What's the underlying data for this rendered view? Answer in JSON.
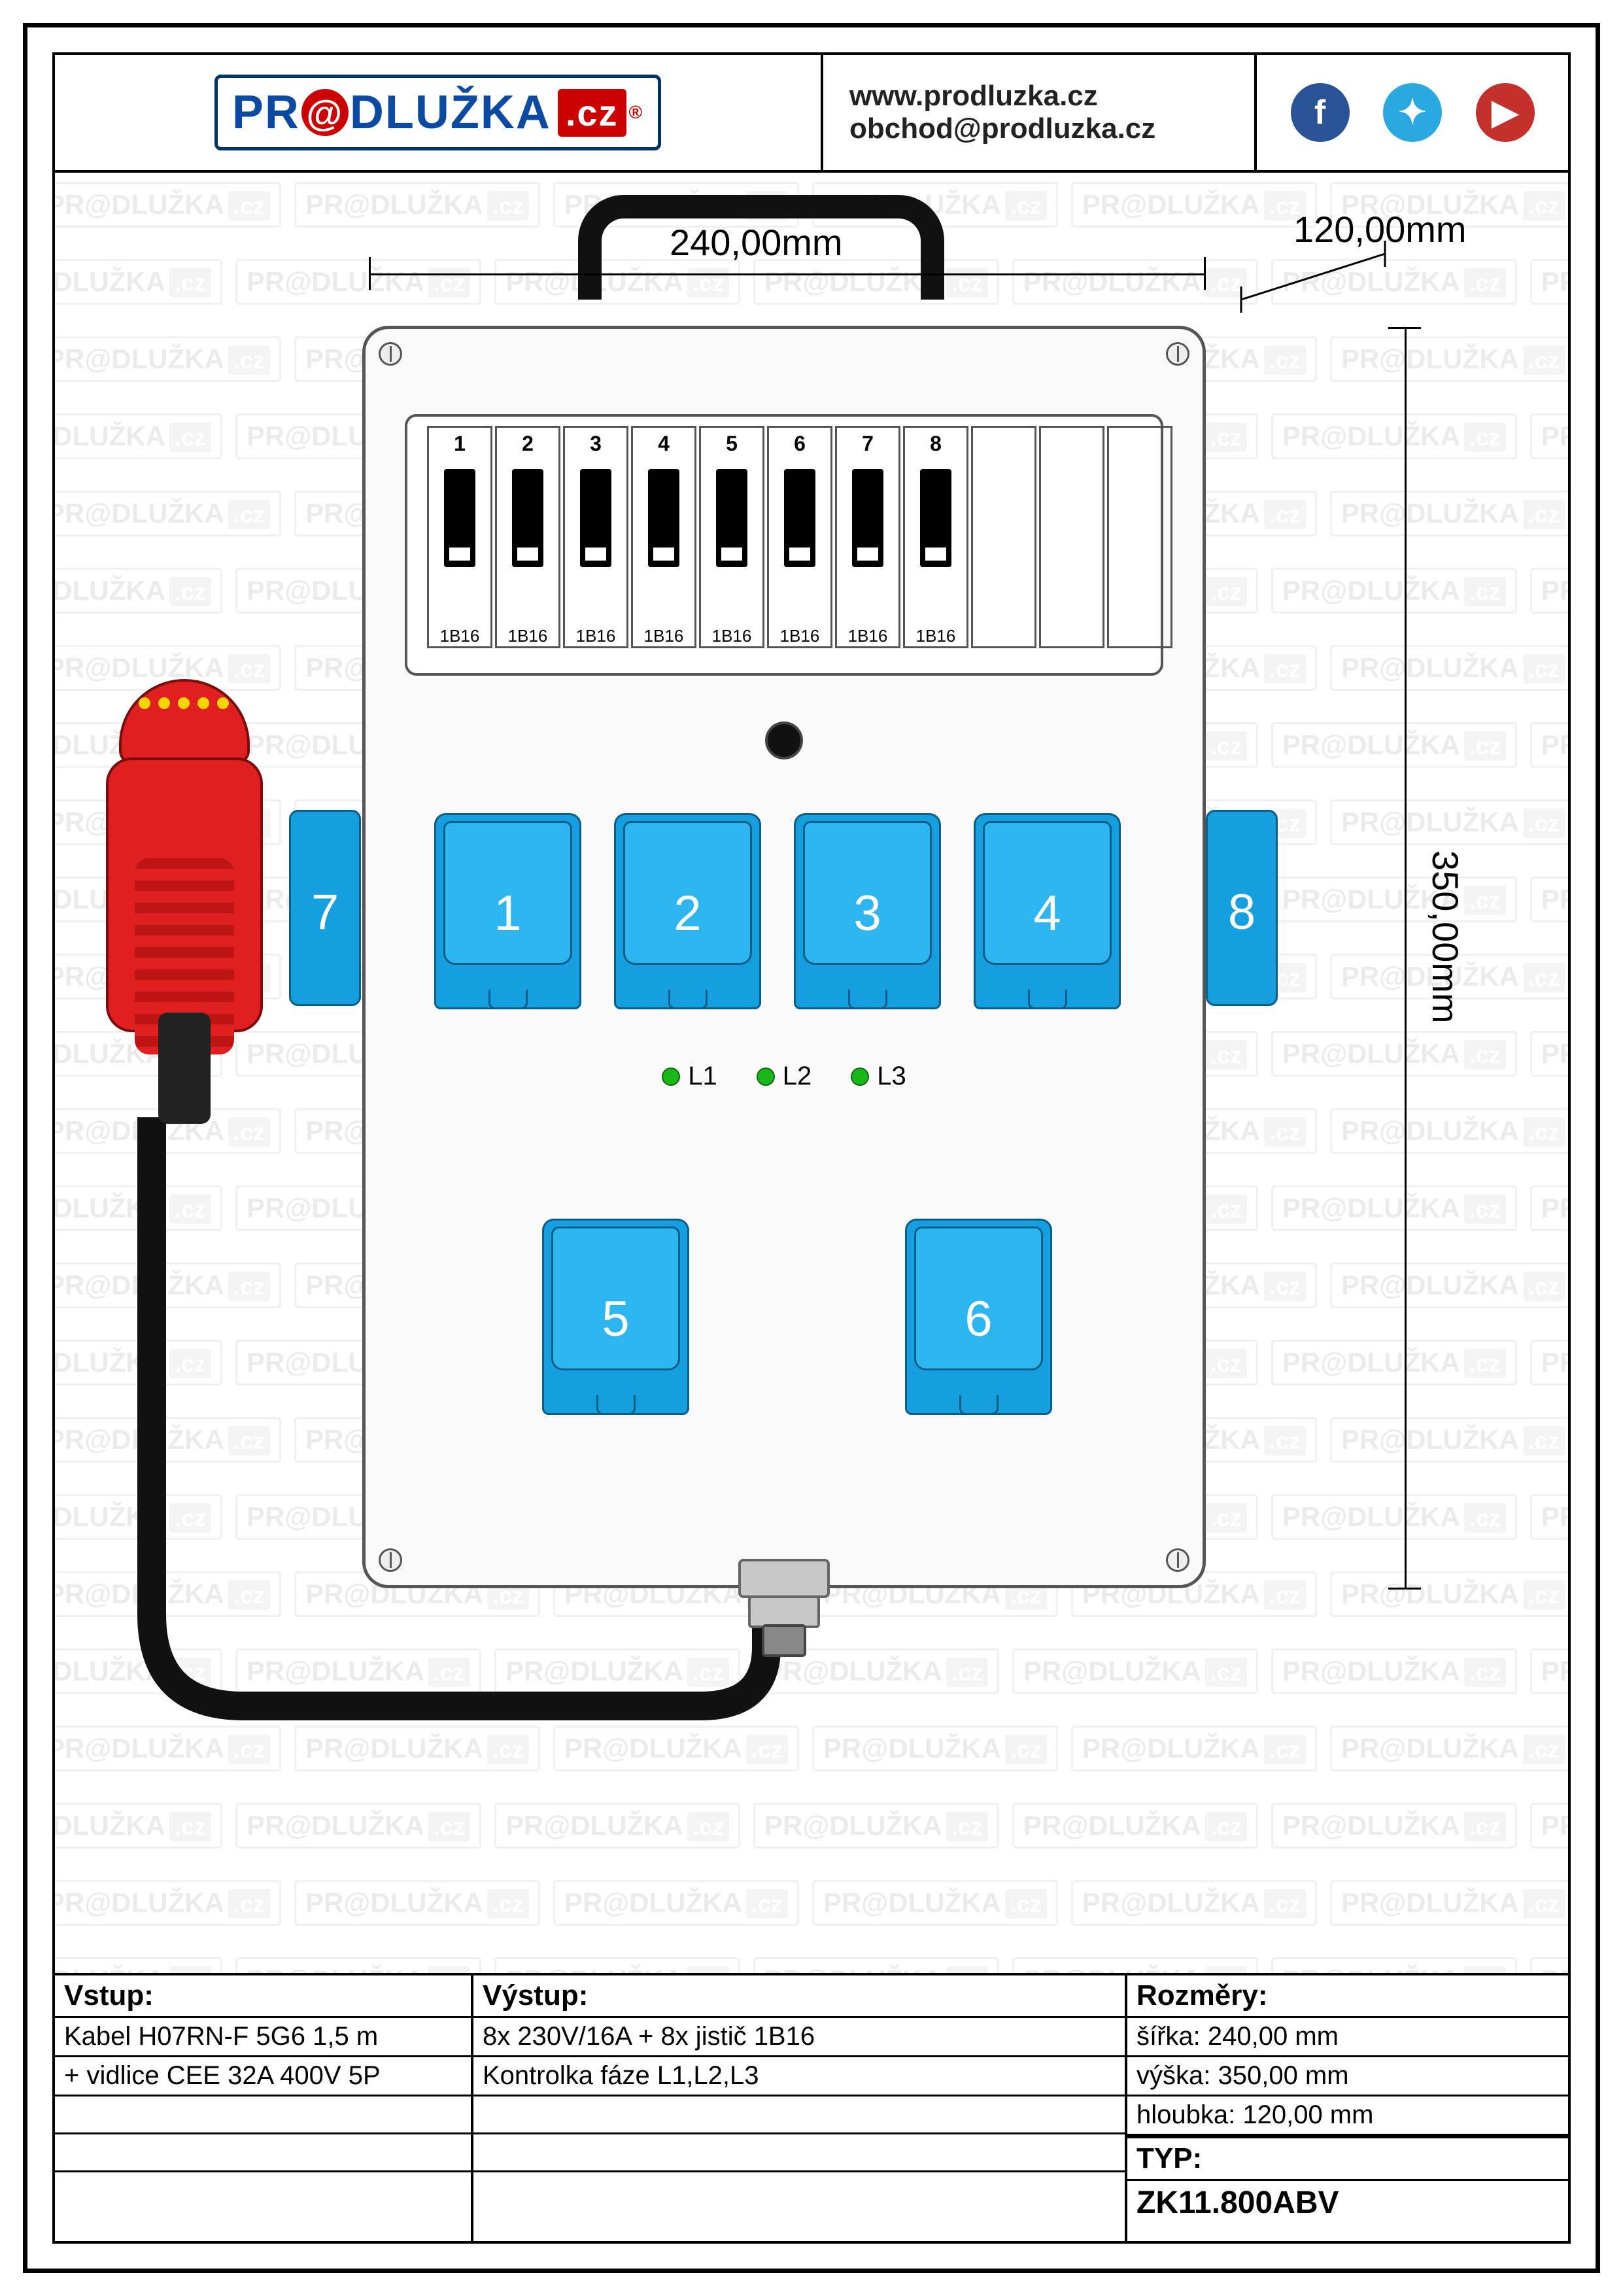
{
  "header": {
    "logo_text_1": "PR",
    "logo_text_o": "@",
    "logo_text_2": "DLUŽKA",
    "logo_cz": ".cz",
    "url": "www.prodluzka.cz",
    "email": "obchod@prodluzka.cz",
    "social": {
      "fb": "f",
      "tw": "✦",
      "yt": "▶"
    }
  },
  "dimensions": {
    "width_label": "240,00mm",
    "depth_label": "120,00mm",
    "height_label": "350,00mm"
  },
  "breakers": {
    "count": 8,
    "numbers": [
      "1",
      "2",
      "3",
      "4",
      "5",
      "6",
      "7",
      "8"
    ],
    "rating": "1B16",
    "color_body": "#ffffff",
    "color_toggle": "#000000"
  },
  "sockets": {
    "front_row1": [
      "1",
      "2",
      "3",
      "4"
    ],
    "front_row2": [
      "5",
      "6"
    ],
    "side_left": "7",
    "side_right": "8",
    "color": "#159fde",
    "lid_color": "#2db5ef",
    "border_color": "#0a5e87",
    "label_color": "#ffffff"
  },
  "leds": {
    "labels": [
      "L1",
      "L2",
      "L3"
    ],
    "color": "#18b818"
  },
  "plug": {
    "color": "#e02020",
    "border": "#7a0c0c",
    "pin_color": "#f8d400"
  },
  "cable": {
    "color": "#111111",
    "width": 44
  },
  "enclosure": {
    "fill": "#fafafa",
    "border": "#555555",
    "radius": 40
  },
  "footer": {
    "vstup_head": "Vstup:",
    "vstup_1": "Kabel H07RN-F 5G6 1,5 m",
    "vstup_2": "+ vidlice CEE 32A 400V 5P",
    "vystup_head": "Výstup:",
    "vystup_1": "8x 230V/16A + 8x jistič 1B16",
    "vystup_2": "Kontrolka fáze L1,L2,L3",
    "rozmery_head": "Rozměry:",
    "rozmery_1": "šířka: 240,00 mm",
    "rozmery_2": "výška: 350,00 mm",
    "rozmery_3": "hloubka: 120,00 mm",
    "typ_head": "TYP:",
    "typ_value": "ZK11.800ABV"
  },
  "watermark_text": "PR@DLUŽKA",
  "watermark_cz": ".cz"
}
